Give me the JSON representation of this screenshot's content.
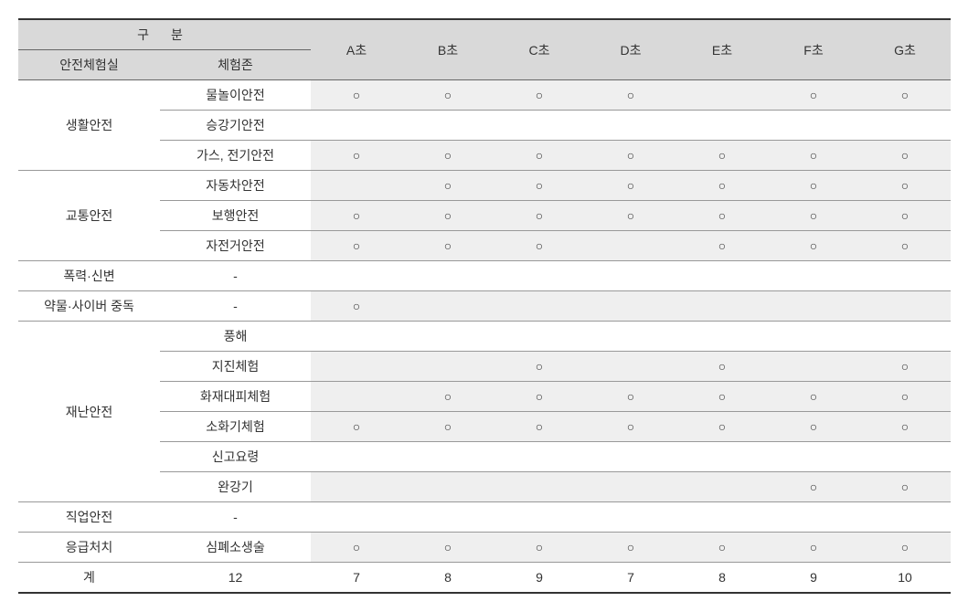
{
  "table": {
    "type": "table",
    "background_color": "#ffffff",
    "header_bg_color": "#d9d9d9",
    "shaded_bg_color": "#efefef",
    "border_color": "#999999",
    "top_border_color": "#333333",
    "text_color": "#333333",
    "font_size": 14,
    "circle_mark": "○",
    "dash_mark": "-",
    "headers": {
      "gubun": "구  분",
      "safety_room": "안전체험실",
      "zone": "체험존",
      "schools": [
        "A초",
        "B초",
        "C초",
        "D초",
        "E초",
        "F초",
        "G초"
      ]
    },
    "room_groups": [
      {
        "room": "생활안전",
        "rowspan": 3,
        "zones": [
          {
            "zone": "물놀이안전",
            "shaded": true,
            "marks": [
              "○",
              "○",
              "○",
              "○",
              "",
              "○",
              "○"
            ]
          },
          {
            "zone": "승강기안전",
            "shaded": false,
            "marks": [
              "",
              "",
              "",
              "",
              "",
              "",
              ""
            ]
          },
          {
            "zone": "가스, 전기안전",
            "shaded": true,
            "marks": [
              "○",
              "○",
              "○",
              "○",
              "○",
              "○",
              "○"
            ]
          }
        ]
      },
      {
        "room": "교통안전",
        "rowspan": 3,
        "zones": [
          {
            "zone": "자동차안전",
            "shaded": true,
            "marks": [
              "",
              "○",
              "○",
              "○",
              "○",
              "○",
              "○"
            ]
          },
          {
            "zone": "보행안전",
            "shaded": true,
            "marks": [
              "○",
              "○",
              "○",
              "○",
              "○",
              "○",
              "○"
            ]
          },
          {
            "zone": "자전거안전",
            "shaded": true,
            "marks": [
              "○",
              "○",
              "○",
              "",
              "○",
              "○",
              "○"
            ]
          }
        ]
      },
      {
        "room": "폭력·신변",
        "rowspan": 1,
        "zones": [
          {
            "zone": "-",
            "shaded": false,
            "marks": [
              "",
              "",
              "",
              "",
              "",
              "",
              ""
            ]
          }
        ]
      },
      {
        "room": "약물·사이버 중독",
        "rowspan": 1,
        "zones": [
          {
            "zone": "-",
            "shaded": true,
            "marks": [
              "○",
              "",
              "",
              "",
              "",
              "",
              ""
            ]
          }
        ]
      },
      {
        "room": "재난안전",
        "rowspan": 6,
        "zones": [
          {
            "zone": "풍해",
            "shaded": false,
            "marks": [
              "",
              "",
              "",
              "",
              "",
              "",
              ""
            ]
          },
          {
            "zone": "지진체험",
            "shaded": true,
            "marks": [
              "",
              "",
              "○",
              "",
              "○",
              "",
              "○"
            ]
          },
          {
            "zone": "화재대피체험",
            "shaded": true,
            "marks": [
              "",
              "○",
              "○",
              "○",
              "○",
              "○",
              "○"
            ]
          },
          {
            "zone": "소화기체험",
            "shaded": true,
            "marks": [
              "○",
              "○",
              "○",
              "○",
              "○",
              "○",
              "○"
            ]
          },
          {
            "zone": "신고요령",
            "shaded": false,
            "marks": [
              "",
              "",
              "",
              "",
              "",
              "",
              ""
            ]
          },
          {
            "zone": "완강기",
            "shaded": true,
            "marks": [
              "",
              "",
              "",
              "",
              "",
              "○",
              "○"
            ]
          }
        ]
      },
      {
        "room": "직업안전",
        "rowspan": 1,
        "zones": [
          {
            "zone": "-",
            "shaded": false,
            "marks": [
              "",
              "",
              "",
              "",
              "",
              "",
              ""
            ]
          }
        ]
      },
      {
        "room": "응급처치",
        "rowspan": 1,
        "zones": [
          {
            "zone": "심폐소생술",
            "shaded": true,
            "marks": [
              "○",
              "○",
              "○",
              "○",
              "○",
              "○",
              "○"
            ]
          }
        ]
      }
    ],
    "totals": {
      "room_label": "계",
      "zone_total": "12",
      "school_totals": [
        "7",
        "8",
        "9",
        "7",
        "8",
        "9",
        "10"
      ]
    }
  }
}
